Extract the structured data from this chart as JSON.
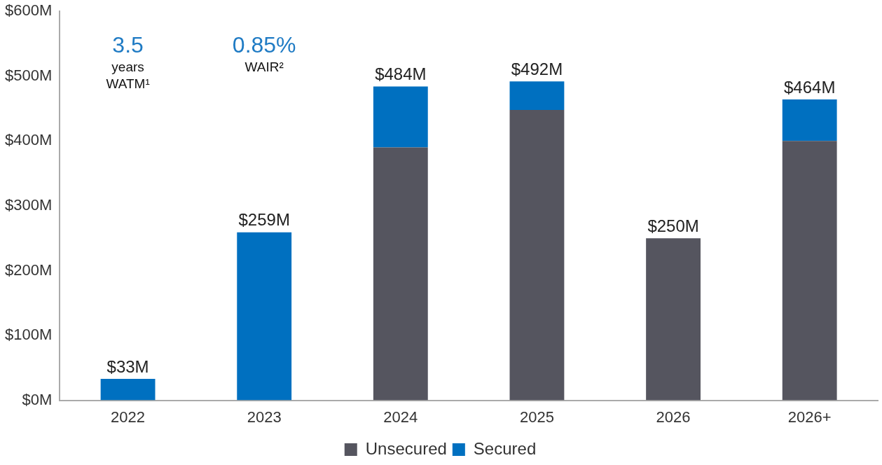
{
  "chart_data": {
    "type": "bar",
    "stacked": true,
    "categories": [
      "2022",
      "2023",
      "2024",
      "2025",
      "2026",
      "2026+"
    ],
    "series": [
      {
        "name": "Unsecured",
        "color": "#55555f",
        "values": [
          null,
          null,
          390,
          448,
          250,
          400
        ]
      },
      {
        "name": "Secured",
        "color": "#0070c0",
        "values": [
          33,
          259,
          94,
          44,
          null,
          64
        ]
      }
    ],
    "totals": [
      "$33M",
      "$259M",
      "$484M",
      "$492M",
      "$250M",
      "$464M"
    ],
    "ylim": [
      0,
      600
    ],
    "yticks": [
      {
        "value": 0,
        "label": "$0M"
      },
      {
        "value": 100,
        "label": "$100M"
      },
      {
        "value": 200,
        "label": "$200M"
      },
      {
        "value": 300,
        "label": "$300M"
      },
      {
        "value": 400,
        "label": "$400M"
      },
      {
        "value": 500,
        "label": "$500M"
      },
      {
        "value": 600,
        "label": "$600M"
      }
    ],
    "grid": false,
    "legend": "bottom",
    "annotations": [
      "3.5\nyears\nWATM¹",
      "0.85%\nWAIR²"
    ]
  }
}
